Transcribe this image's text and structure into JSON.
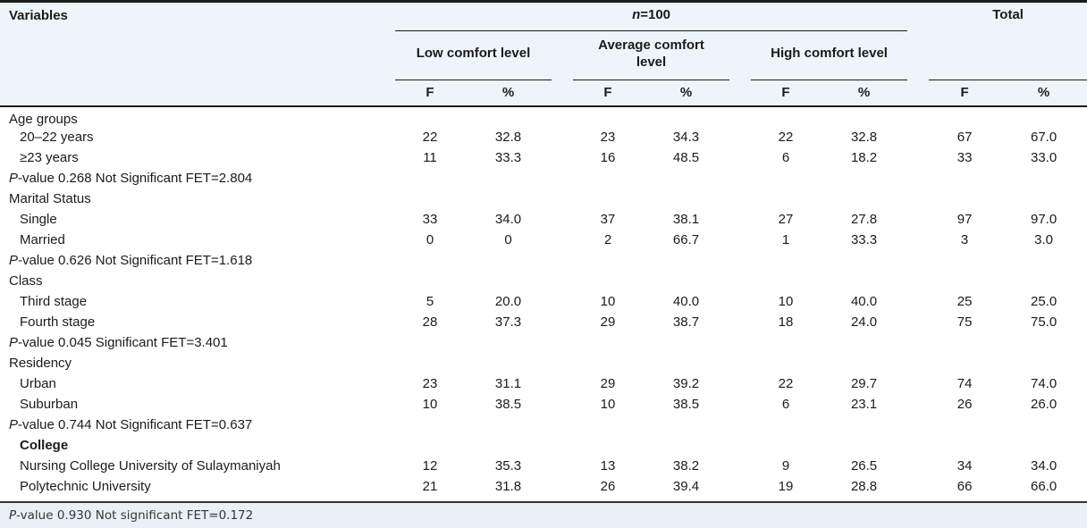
{
  "colors": {
    "header_band_bg": "#eef5fa",
    "footer_band_bg": "#e8f1f8",
    "rule_color": "#1b1b1b",
    "text_color": "#1b1b1b",
    "body_bg": "#ffffff"
  },
  "table": {
    "header": {
      "variables": "Variables",
      "n_italic": "n",
      "n_rest": "=100",
      "total": "Total",
      "groups": [
        "Low comfort level",
        "Average comfort level",
        "High comfort level"
      ],
      "freq": "F",
      "pct": "%"
    },
    "rows": [
      {
        "type": "category",
        "label": "Age groups"
      },
      {
        "type": "item",
        "label": "20–22 years",
        "values": [
          "22",
          "32.8",
          "23",
          "34.3",
          "22",
          "32.8",
          "67",
          "67.0"
        ]
      },
      {
        "type": "item",
        "label": "≥23 years",
        "values": [
          "11",
          "33.3",
          "16",
          "48.5",
          "6",
          "18.2",
          "33",
          "33.0"
        ]
      },
      {
        "type": "pvalue",
        "label": "P-value 0.268 Not Significant FET=2.804"
      },
      {
        "type": "category",
        "label": "Marital Status"
      },
      {
        "type": "item",
        "label": "Single",
        "values": [
          "33",
          "34.0",
          "37",
          "38.1",
          "27",
          "27.8",
          "97",
          "97.0"
        ]
      },
      {
        "type": "item",
        "label": "Married",
        "values": [
          "0",
          "0",
          "2",
          "66.7",
          "1",
          "33.3",
          "3",
          "3.0"
        ]
      },
      {
        "type": "pvalue",
        "label": "P-value 0.626 Not Significant FET=1.618"
      },
      {
        "type": "category",
        "label": "Class"
      },
      {
        "type": "item",
        "label": "Third stage",
        "values": [
          "5",
          "20.0",
          "10",
          "40.0",
          "10",
          "40.0",
          "25",
          "25.0"
        ]
      },
      {
        "type": "item",
        "label": "Fourth stage",
        "values": [
          "28",
          "37.3",
          "29",
          "38.7",
          "18",
          "24.0",
          "75",
          "75.0"
        ]
      },
      {
        "type": "pvalue",
        "label": "P-value 0.045 Significant FET=3.401"
      },
      {
        "type": "category",
        "label": "Residency"
      },
      {
        "type": "item",
        "label": "Urban",
        "values": [
          "23",
          "31.1",
          "29",
          "39.2",
          "22",
          "29.7",
          "74",
          "74.0"
        ]
      },
      {
        "type": "item",
        "label": "Suburban",
        "values": [
          "10",
          "38.5",
          "10",
          "38.5",
          "6",
          "23.1",
          "26",
          "26.0"
        ]
      },
      {
        "type": "pvalue",
        "label": "P-value 0.744 Not Significant FET=0.637"
      },
      {
        "type": "category",
        "label": "College",
        "bold": true,
        "indent": true
      },
      {
        "type": "item",
        "label": "Nursing College University of Sulaymaniyah",
        "values": [
          "12",
          "35.3",
          "13",
          "38.2",
          "9",
          "26.5",
          "34",
          "34.0"
        ]
      },
      {
        "type": "item",
        "label": "Polytechnic University",
        "values": [
          "21",
          "31.8",
          "26",
          "39.4",
          "19",
          "28.8",
          "66",
          "66.0"
        ]
      }
    ],
    "footer": {
      "italic_prefix": "P",
      "text": "-value 0.930 Not significant FET=0.172"
    }
  }
}
